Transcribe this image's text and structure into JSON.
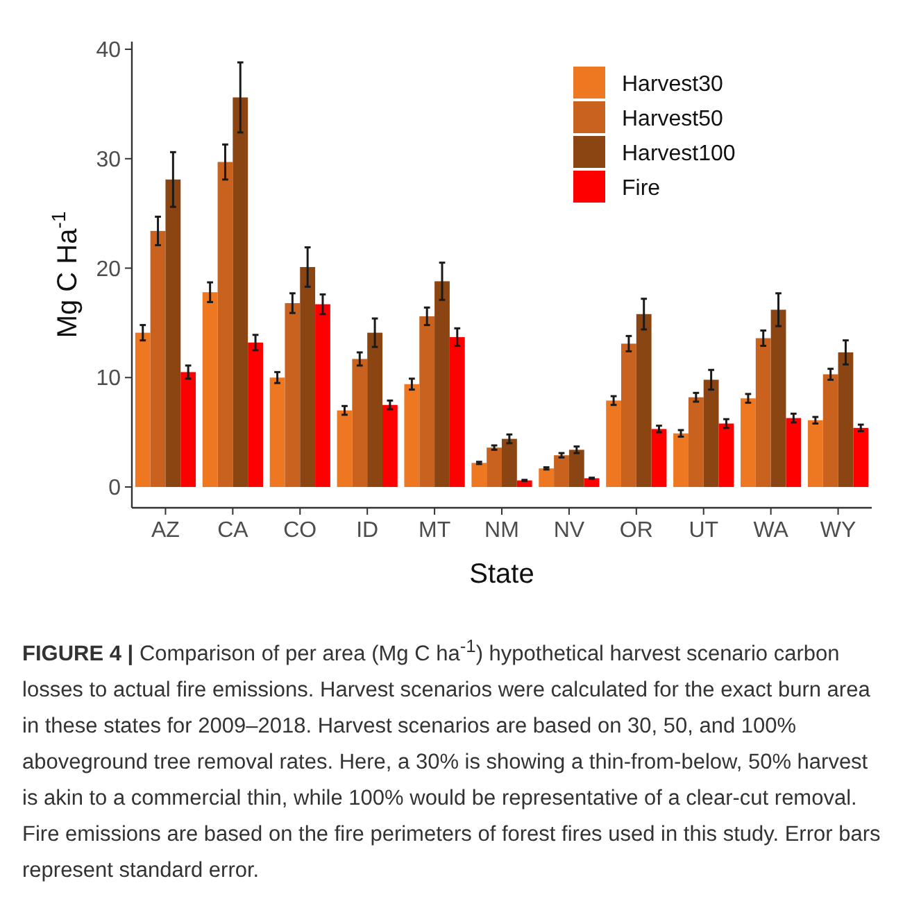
{
  "chart_data": {
    "type": "bar",
    "xlabel": "State",
    "ylabel": "Mg C Ha$^{-1}$",
    "categories": [
      "AZ",
      "CA",
      "CO",
      "ID",
      "MT",
      "NM",
      "NV",
      "OR",
      "UT",
      "WA",
      "WY"
    ],
    "series": [
      {
        "name": "Harvest30",
        "color": "#ee7722",
        "values": [
          14.1,
          17.8,
          10.0,
          7.0,
          9.4,
          2.2,
          1.7,
          7.9,
          4.9,
          8.1,
          6.1
        ],
        "errors": [
          0.7,
          0.9,
          0.5,
          0.4,
          0.5,
          0.1,
          0.1,
          0.4,
          0.3,
          0.4,
          0.3
        ]
      },
      {
        "name": "Harvest50",
        "color": "#c8621e",
        "values": [
          23.4,
          29.7,
          16.8,
          11.7,
          15.6,
          3.6,
          2.9,
          13.1,
          8.2,
          13.6,
          10.3
        ],
        "errors": [
          1.3,
          1.6,
          0.9,
          0.6,
          0.8,
          0.2,
          0.2,
          0.7,
          0.4,
          0.7,
          0.5
        ]
      },
      {
        "name": "Harvest100",
        "color": "#8b4513",
        "values": [
          28.1,
          35.6,
          20.1,
          14.1,
          18.8,
          4.4,
          3.4,
          15.8,
          9.8,
          16.2,
          12.3
        ],
        "errors": [
          2.5,
          3.2,
          1.8,
          1.3,
          1.7,
          0.4,
          0.3,
          1.4,
          0.9,
          1.5,
          1.1
        ]
      },
      {
        "name": "Fire",
        "color": "#ff0000",
        "values": [
          10.5,
          13.2,
          16.7,
          7.5,
          13.7,
          0.6,
          0.8,
          5.3,
          5.8,
          6.3,
          5.4
        ],
        "errors": [
          0.6,
          0.7,
          0.9,
          0.4,
          0.8,
          0.05,
          0.05,
          0.3,
          0.4,
          0.4,
          0.3
        ]
      }
    ],
    "ylim": [
      -1.9,
      40.7
    ],
    "yticks": [
      0,
      10,
      20,
      30,
      40
    ],
    "grid": false,
    "legend": "top right",
    "annotations": [
      "FIGURE 4 | Comparison of per area (Mg C ha$^{-1}$) hypothetical harvest scenario carbon losses to actual fire emissions. Harvest scenarios were calculated for the exact burn area in these states for 2009–2018. Harvest scenarios are based on 30, 50, and 100% aboveground tree removal rates. Here, a 30% is showing a thin-from-below, 50% harvest is akin to a commercial thin, while 100% would be representative of a clear-cut removal. Fire emissions are based on the fire perimeters of forest fires used in this study. Error bars represent standard error."
    ]
  }
}
